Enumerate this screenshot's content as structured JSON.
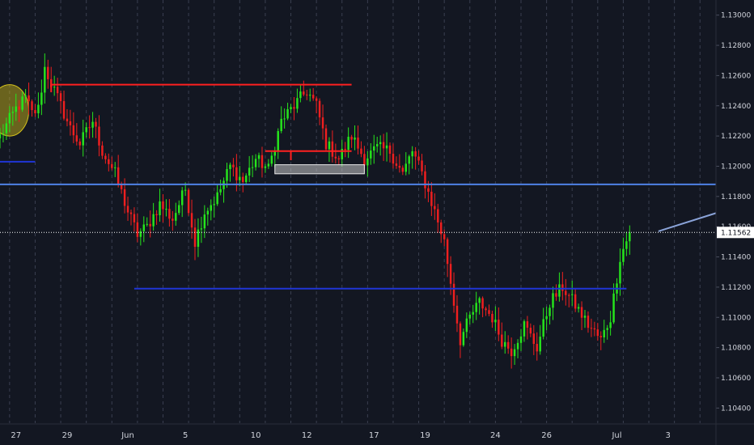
{
  "chart_data": {
    "type": "candlestick",
    "colors": {
      "background": "#131722",
      "grid": "#3a3f50",
      "up": "#26e51c",
      "down": "#ef1f1f",
      "axis_text": "#d1d4dc",
      "current_price_tag": "#ffffff"
    },
    "y_axis": {
      "range": [
        1.103,
        1.131
      ],
      "ticks": [
        "1.13000",
        "1.12800",
        "1.12600",
        "1.12400",
        "1.12200",
        "1.12000",
        "1.11800",
        "1.11600",
        "1.11400",
        "1.11200",
        "1.11000",
        "1.10800",
        "1.10600",
        "1.10400"
      ],
      "tick_values": [
        1.13,
        1.128,
        1.126,
        1.124,
        1.122,
        1.12,
        1.118,
        1.116,
        1.114,
        1.112,
        1.11,
        1.108,
        1.106,
        1.104
      ]
    },
    "x_axis": {
      "bar_range": [
        0,
        224
      ],
      "tick_labels": [
        "27",
        "29",
        "Jun",
        "5",
        "10",
        "12",
        "17",
        "19",
        "24",
        "26",
        "Jul",
        "3"
      ],
      "tick_bars": [
        5,
        21,
        40,
        58,
        80,
        96,
        117,
        133,
        155,
        171,
        193,
        209
      ]
    },
    "current_price": {
      "label": "1.11562",
      "value": 1.11562
    },
    "anchors": [
      [
        0,
        1.122
      ],
      [
        5,
        1.1238
      ],
      [
        8,
        1.1245
      ],
      [
        10,
        1.1235
      ],
      [
        12,
        1.1238
      ],
      [
        14,
        1.1265
      ],
      [
        17,
        1.125
      ],
      [
        19,
        1.124
      ],
      [
        22,
        1.1225
      ],
      [
        25,
        1.1215
      ],
      [
        29,
        1.123
      ],
      [
        32,
        1.121
      ],
      [
        36,
        1.1195
      ],
      [
        40,
        1.117
      ],
      [
        43,
        1.1155
      ],
      [
        46,
        1.116
      ],
      [
        50,
        1.1175
      ],
      [
        54,
        1.1165
      ],
      [
        58,
        1.1185
      ],
      [
        61,
        1.115
      ],
      [
        64,
        1.117
      ],
      [
        68,
        1.118
      ],
      [
        72,
        1.12
      ],
      [
        76,
        1.119
      ],
      [
        80,
        1.1205
      ],
      [
        84,
        1.1198
      ],
      [
        88,
        1.123
      ],
      [
        92,
        1.124
      ],
      [
        96,
        1.125
      ],
      [
        99,
        1.124
      ],
      [
        102,
        1.1215
      ],
      [
        106,
        1.1205
      ],
      [
        110,
        1.122
      ],
      [
        114,
        1.1205
      ],
      [
        118,
        1.1212
      ],
      [
        122,
        1.121
      ],
      [
        126,
        1.1195
      ],
      [
        129,
        1.121
      ],
      [
        132,
        1.1195
      ],
      [
        136,
        1.117
      ],
      [
        139,
        1.115
      ],
      [
        142,
        1.111
      ],
      [
        144,
        1.1085
      ],
      [
        147,
        1.11
      ],
      [
        150,
        1.111
      ],
      [
        154,
        1.11
      ],
      [
        157,
        1.1085
      ],
      [
        160,
        1.1078
      ],
      [
        164,
        1.1095
      ],
      [
        168,
        1.108
      ],
      [
        172,
        1.111
      ],
      [
        176,
        1.112
      ],
      [
        180,
        1.1108
      ],
      [
        184,
        1.1095
      ],
      [
        188,
        1.1085
      ],
      [
        191,
        1.11
      ],
      [
        194,
        1.114
      ],
      [
        197,
        1.1156
      ]
    ],
    "annotations": {
      "highlight_ellipse": {
        "bar": 3,
        "price": 1.1237,
        "rx_bars": 6,
        "ry_price": 0.0017,
        "color": "#d4c11b"
      },
      "lines": [
        {
          "name": "resistance-top",
          "x1": 16,
          "x2": 110,
          "y1": 1.1254,
          "y2": 1.1254,
          "color": "#ff2020"
        },
        {
          "name": "resistance-top-tick",
          "x1": 16,
          "x2": 16,
          "y1": 1.1254,
          "y2": 1.1249,
          "color": "#ff2020"
        },
        {
          "name": "resistance-mid",
          "x1": 83,
          "x2": 110,
          "y1": 1.121,
          "y2": 1.121,
          "color": "#ff2020"
        },
        {
          "name": "resistance-mid-tick",
          "x1": 91,
          "x2": 91,
          "y1": 1.121,
          "y2": 1.1204,
          "color": "#ff2020"
        },
        {
          "name": "support-left",
          "x1": 0,
          "x2": 11,
          "y1": 1.1203,
          "y2": 1.1203,
          "color": "#1f35d6"
        },
        {
          "name": "support-bottom",
          "x1": 42,
          "x2": 196,
          "y1": 1.1119,
          "y2": 1.1119,
          "color": "#1f35d6"
        },
        {
          "name": "horizontal-light-blue",
          "x1": 0,
          "x2": 232,
          "y1": 1.1188,
          "y2": 1.1188,
          "color": "#4f82e6"
        },
        {
          "name": "trendline-light",
          "x1": 206,
          "x2": 232,
          "y1": 1.1157,
          "y2": 1.1169,
          "color": "#8aa3d8"
        }
      ],
      "zone_box": {
        "x1": 86,
        "x2": 114,
        "y1": 1.1201,
        "y2": 1.1195,
        "color": "#c9c9c9"
      }
    }
  }
}
